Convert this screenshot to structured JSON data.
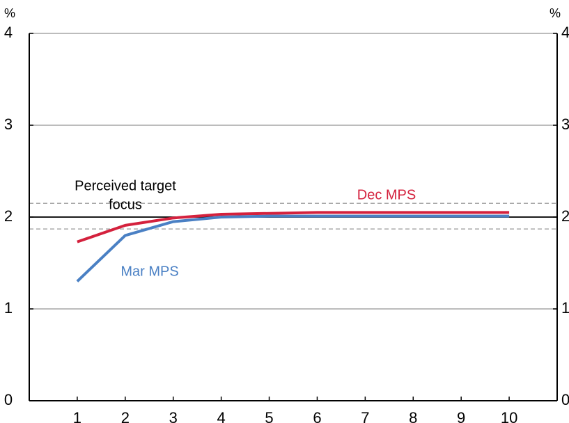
{
  "chart_data": {
    "type": "line",
    "x": [
      1,
      2,
      3,
      4,
      5,
      6,
      7,
      8,
      9,
      10
    ],
    "xlim": [
      0,
      11
    ],
    "xticks": [
      1,
      2,
      3,
      4,
      5,
      6,
      7,
      8,
      9,
      10
    ],
    "ylim": [
      0,
      4
    ],
    "yticks": [
      0,
      1,
      2,
      3,
      4
    ],
    "y2lim": [
      0,
      4
    ],
    "y2ticks": [
      0,
      1,
      2,
      3,
      4
    ],
    "y_unit": "%",
    "y2_unit": "%",
    "grid": true,
    "series": [
      {
        "name": "Dec MPS",
        "color": "#d4213d",
        "values": [
          1.73,
          1.91,
          1.99,
          2.03,
          2.04,
          2.05,
          2.05,
          2.05,
          2.05,
          2.05
        ]
      },
      {
        "name": "Mar MPS",
        "color": "#4a80c4",
        "values": [
          1.3,
          1.8,
          1.95,
          2.0,
          2.01,
          2.01,
          2.01,
          2.01,
          2.01,
          2.01
        ]
      }
    ],
    "reference_lines": [
      {
        "value": 2,
        "color": "#000000",
        "style": "solid"
      },
      {
        "value": 2.15,
        "color": "#aaaaaa",
        "style": "dashed"
      },
      {
        "value": 1.87,
        "color": "#aaaaaa",
        "style": "dashed"
      }
    ],
    "annotation": {
      "lines": [
        "Perceived target",
        "focus"
      ]
    }
  }
}
